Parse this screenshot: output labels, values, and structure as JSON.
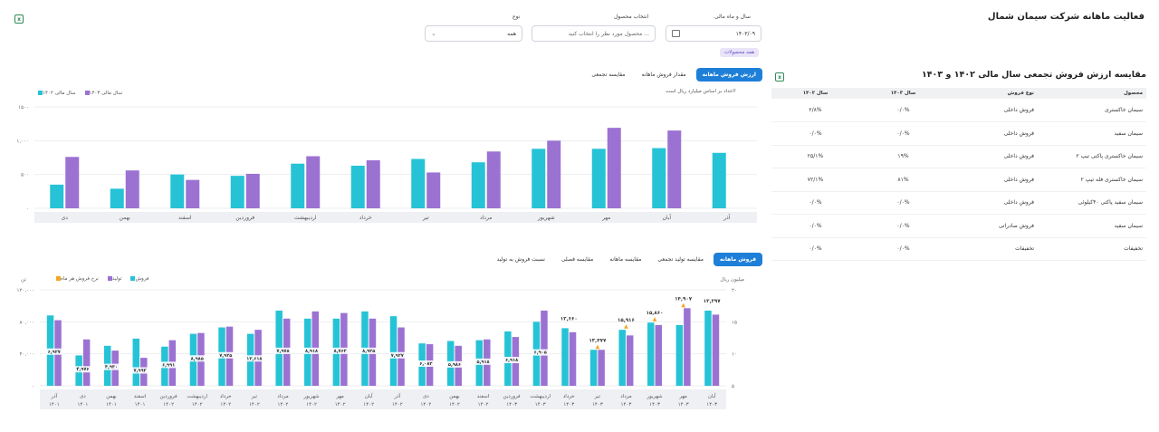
{
  "page": {
    "title": "فعالیت ماهانه شرکت سیمان شمال",
    "export_icon": "excel-icon"
  },
  "filters": {
    "year_month": {
      "label": "سال و ماه مالی",
      "value": "۱۴۰۳/۰۹",
      "icon": "calendar-icon"
    },
    "product": {
      "label": "انتخاب محصول",
      "placeholder": "محصول مورد نظر را انتخاب کنید ..."
    },
    "type": {
      "label": "نوع",
      "value": "همه",
      "icon": "chevron-down-icon"
    },
    "all_products_badge": "همه محصولات"
  },
  "top_chart": {
    "tabs": [
      "ارزش فروش ماهانه",
      "مقدار فروش ماهانه",
      "مقایسه تجمعی"
    ],
    "active_tab": 0,
    "note": "اعداد بر اساس میلیارد ریال است!",
    "legend": [
      "سال مالی ۱۴۰۳",
      "سال مالی ۱۴۰۲"
    ],
    "colors": {
      "s1403": "#9b72d2",
      "s1402": "#26c3d6"
    }
  },
  "chart_data": [
    {
      "type": "bar",
      "categories": [
        "آذر",
        "آبان",
        "مهر",
        "شهریور",
        "مرداد",
        "تیر",
        "خرداد",
        "اردیبهشت",
        "فروردین",
        "اسفند",
        "بهمن",
        "دی"
      ],
      "series": [
        {
          "name": "سال مالی ۱۴۰۲",
          "values": [
            820,
            890,
            880,
            880,
            680,
            730,
            630,
            660,
            480,
            500,
            290,
            350
          ]
        },
        {
          "name": "سال مالی ۱۴۰۳",
          "values": [
            null,
            1150,
            1190,
            1000,
            840,
            530,
            710,
            770,
            510,
            420,
            560,
            760
          ]
        }
      ],
      "yticks": [
        "۰",
        "۵۰۰",
        "۱,۰۰۰",
        "۱۵۰۰"
      ],
      "ylim": [
        0,
        1500
      ]
    },
    {
      "type": "bar",
      "categories": [
        "آبان\n۱۴۰۳",
        "مهر\n۱۴۰۳",
        "شهریور\n۱۴۰۳",
        "مرداد\n۱۴۰۳",
        "تیر\n۱۴۰۳",
        "خرداد\n۱۴۰۳",
        "اردیبهشت\n۱۴۰۳",
        "فروردین\n۱۴۰۳",
        "اسفند\n۱۴۰۲",
        "بهمن\n۱۴۰۲",
        "دی\n۱۴۰۲",
        "آذر\n۱۴۰۲",
        "آبان\n۱۴۰۲",
        "مهر\n۱۴۰۲",
        "شهریور\n۱۴۰۲",
        "مرداد\n۱۴۰۲",
        "تیر\n۱۴۰۲",
        "خرداد\n۱۴۰۲",
        "اردیبهشت\n۱۴۰۲",
        "فروردین\n۱۴۰۲",
        "اسفند\n۱۴۰۱",
        "بهمن\n۱۴۰۱",
        "دی\n۱۴۰۱",
        "آذر\n۱۴۰۱"
      ],
      "series": [
        {
          "name": "فروش",
          "values": [
            94000,
            76000,
            79000,
            70000,
            45000,
            72000,
            80000,
            68000,
            57000,
            56000,
            53000,
            87000,
            93000,
            84000,
            84000,
            94000,
            65000,
            73000,
            65000,
            49000,
            59000,
            50000,
            38000,
            88000
          ]
        },
        {
          "name": "تولید",
          "values": [
            89000,
            97000,
            76000,
            63000,
            45000,
            67000,
            94000,
            61000,
            58000,
            50000,
            52000,
            73000,
            84000,
            91000,
            93000,
            84000,
            70000,
            74000,
            66000,
            57000,
            35000,
            44000,
            58000,
            82000
          ]
        }
      ],
      "data_labels": [
        "۱۳,۲۹۷",
        "۱۴,۹۰۷",
        "۱۵,۸۶۰",
        "۱۵,۹۱۶",
        "۱۳,۴۷۷",
        "۱۲,۶۶۰",
        "۶,۹۰۵",
        "۶,۹۱۸",
        "۵,۹۱۸",
        "۵,۹۸۶",
        "۶,۰۸۲",
        "۷,۹۲۷",
        "۸,۹۲۵",
        "۸,۷۶۲",
        "۸,۹۱۸",
        "۷,۹۷۸",
        "۱۲,۶۱۸",
        "۷,۹۲۵",
        "۸,۹۸۵",
        "۶,۹۹۱",
        "۷,۹۹۲",
        "۴,۹۳۰",
        "۴,۹۷۶",
        "۶,۹۲۷"
      ],
      "trend_marker_indices": [
        1,
        2,
        3,
        4
      ],
      "y_left_label": "تن",
      "y_left_ticks": [
        "۰",
        "۴۰,۰۰۰",
        "۸۰,۰۰۰",
        "۱۲۰,۰۰۰"
      ],
      "y_right_label": "میلیون ریال",
      "y_right_ticks": [
        "۵",
        "۱۰",
        "۱۵",
        "۲۰"
      ],
      "ylim": [
        0,
        120000
      ]
    }
  ],
  "bottom_chart": {
    "tabs": [
      "فروش ماهانه",
      "مقایسه تولید تجمعی",
      "مقایسه ماهانه",
      "مقایسه فصلی",
      "نسبت فروش به تولید"
    ],
    "active_tab": 0,
    "legend": [
      "فروش",
      "تولید",
      "نرخ فروش هر ماه"
    ],
    "colors": {
      "sales": "#26c3d6",
      "production": "#9b72d2",
      "rate": "#f5a623"
    }
  },
  "comparison": {
    "title": "مقایسه ارزش فروش تجمعی سال مالی ۱۴۰۲ و ۱۴۰۳",
    "headers": [
      "محصول",
      "نوع فروش",
      "سال ۱۴۰۳",
      "سال ۱۴۰۲"
    ],
    "rows": [
      [
        "سیمان خاکستری",
        "فروش داخلی",
        "۰/۰%",
        "۲/۸%"
      ],
      [
        "سیمان سفید",
        "فروش داخلی",
        "۰/۰%",
        "۰/۰%"
      ],
      [
        "سیمان خاکستری پاکتی تیپ ۲",
        "فروش داخلی",
        "۱۹%",
        "۲۵/۱%"
      ],
      [
        "سیمان خاکستری فله تیپ ۲",
        "فروش داخلی",
        "۸۱%",
        "۷۲/۱%"
      ],
      [
        "سیمان سفید پاکتی ۴۰کیلوئی",
        "فروش داخلی",
        "۰/۰%",
        "۰/۰%"
      ],
      [
        "سیمان سفید",
        "فروش صادراتی",
        "۰/۰%",
        "۰/۰%"
      ],
      [
        "تخفیفات",
        "تخفیفات",
        "۰/۰%",
        "۰/۰%"
      ]
    ]
  }
}
